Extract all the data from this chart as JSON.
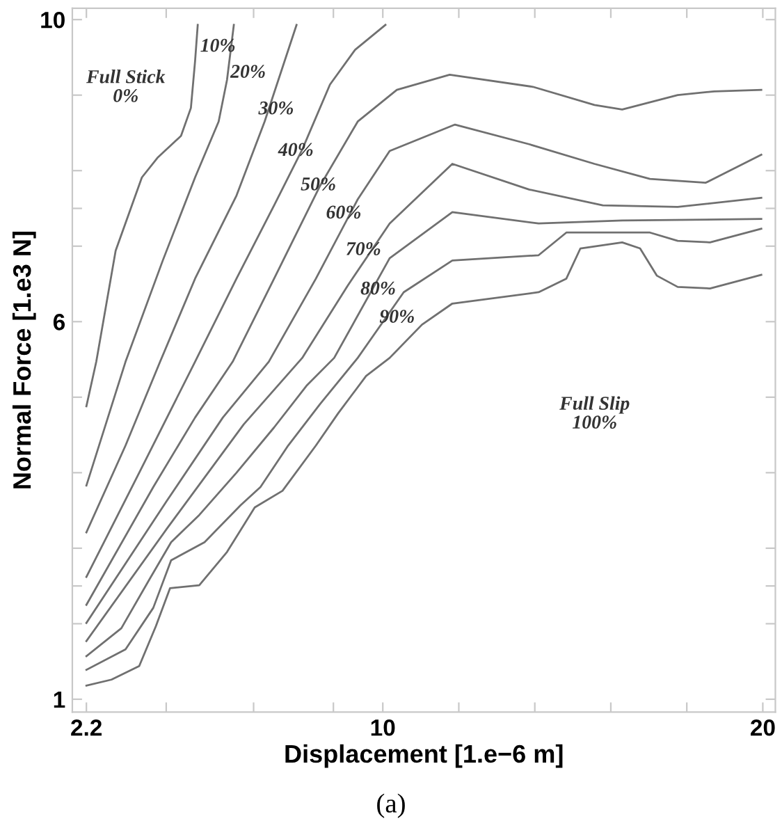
{
  "chart_data": {
    "type": "line",
    "xlabel": "Displacement [1.e−6 m]",
    "ylabel": "Normal Force [1.e3 N]",
    "xlim": [
      1.83,
      20.33
    ],
    "ylim": [
      0.83,
      10.15
    ],
    "xticks": [
      2.2,
      {
        "value": 4.3,
        "label": null
      },
      {
        "value": 6.6,
        "label": null
      },
      {
        "value": 8.7,
        "label": null
      },
      10,
      {
        "value": 12,
        "label": null
      },
      {
        "value": 14,
        "label": null
      },
      {
        "value": 16,
        "label": null
      },
      {
        "value": 18,
        "label": null
      },
      20
    ],
    "yticks": [
      1,
      {
        "value": 2,
        "label": null
      },
      {
        "value": 2.5,
        "label": null
      },
      {
        "value": 3,
        "label": null
      },
      {
        "value": 4,
        "label": null
      },
      {
        "value": 5,
        "label": null
      },
      6,
      {
        "value": 7,
        "label": null
      },
      {
        "value": 7.5,
        "label": null
      },
      {
        "value": 8,
        "label": null
      },
      {
        "value": 9,
        "label": null
      },
      10
    ],
    "grid": false,
    "marker": "none",
    "line_style": "solid",
    "series": [
      {
        "color": "#707070",
        "x": [
          2.2,
          2.46,
          2.97,
          3.66,
          4.07,
          4.69,
          4.95,
          5.06,
          5.13
        ],
        "values": [
          4.88,
          5.47,
          6.94,
          7.91,
          8.17,
          8.46,
          8.83,
          9.45,
          9.93
        ]
      },
      {
        "color": "#707070",
        "x": [
          2.2,
          3.23,
          4.21,
          5.06,
          5.68,
          5.9,
          6.08
        ],
        "values": [
          3.83,
          5.47,
          6.81,
          7.91,
          8.65,
          9.2,
          9.93
        ]
      },
      {
        "color": "#707070",
        "x": [
          2.2,
          3.23,
          4.14,
          5.06,
          6.15,
          6.89,
          7.73
        ],
        "values": [
          3.21,
          4.36,
          5.47,
          6.57,
          7.67,
          8.65,
          9.93
        ]
      },
      {
        "color": "#707070",
        "x": [
          2.2,
          3.59,
          5.06,
          6.15,
          7.14,
          7.88,
          8.61,
          9.27,
          10.07
        ],
        "values": [
          2.62,
          4.0,
          5.47,
          6.57,
          7.54,
          8.28,
          9.14,
          9.6,
          9.93
        ]
      },
      {
        "color": "#707070",
        "x": [
          2.2,
          3.96,
          5.06,
          6.05,
          7.14,
          8.35,
          9.34,
          10.37,
          11.76,
          13.95,
          15.57,
          16.3,
          17.76,
          18.72,
          19.96
        ],
        "values": [
          2.25,
          3.81,
          4.73,
          5.47,
          6.57,
          7.8,
          8.65,
          9.07,
          9.27,
          9.11,
          8.87,
          8.81,
          9.0,
          9.05,
          9.07
        ]
      },
      {
        "color": "#707070",
        "x": [
          2.2,
          4.32,
          5.79,
          7.0,
          8.24,
          9.34,
          10.18,
          11.9,
          13.85,
          15.57,
          17.03,
          18.5,
          19.96
        ],
        "values": [
          2.01,
          3.63,
          4.73,
          5.47,
          6.57,
          7.62,
          8.26,
          8.61,
          8.35,
          8.09,
          7.89,
          7.84,
          8.21
        ]
      },
      {
        "color": "#707070",
        "x": [
          2.2,
          4.32,
          6.34,
          7.88,
          9.08,
          10.18,
          11.83,
          13.85,
          15.79,
          17.76,
          19.96
        ],
        "values": [
          1.77,
          3.26,
          4.64,
          5.52,
          6.48,
          7.3,
          8.09,
          7.75,
          7.54,
          7.52,
          7.64
        ]
      },
      {
        "color": "#707070",
        "x": [
          2.2,
          3.12,
          3.85,
          4.43,
          5.17,
          6.15,
          7.14,
          7.99,
          8.72,
          10.18,
          11.83,
          14.1,
          16.3,
          19.96
        ],
        "values": [
          1.57,
          1.94,
          2.58,
          3.08,
          3.44,
          4.0,
          4.6,
          5.15,
          5.52,
          6.84,
          7.45,
          7.3,
          7.34,
          7.36
        ]
      },
      {
        "color": "#707070",
        "x": [
          2.2,
          3.23,
          3.96,
          4.43,
          5.31,
          6.26,
          6.78,
          7.51,
          8.35,
          9.34,
          10.55,
          11.83,
          14.1,
          14.83,
          17.03,
          17.76,
          18.61,
          19.96
        ],
        "values": [
          1.39,
          1.66,
          2.21,
          2.84,
          3.08,
          3.57,
          3.81,
          4.36,
          4.91,
          5.52,
          6.39,
          6.81,
          6.88,
          7.18,
          7.18,
          7.07,
          7.05,
          7.23
        ]
      },
      {
        "color": "#707070",
        "x": [
          2.2,
          2.86,
          3.59,
          4.03,
          4.4,
          5.17,
          5.9,
          6.63,
          7.36,
          8.24,
          8.83,
          9.56,
          10.18,
          11.03,
          11.83,
          14.1,
          14.83,
          15.2,
          16.3,
          16.77,
          17.21,
          17.76,
          18.61,
          19.96
        ],
        "values": [
          1.18,
          1.26,
          1.44,
          1.97,
          2.47,
          2.51,
          2.95,
          3.54,
          3.76,
          4.36,
          4.79,
          5.28,
          5.52,
          5.96,
          6.24,
          6.39,
          6.57,
          6.97,
          7.05,
          6.97,
          6.61,
          6.46,
          6.44,
          6.62
        ]
      }
    ],
    "annotations": [
      "10%",
      "20%",
      "30%",
      "40%",
      "50%",
      "60%",
      "70%",
      "80%",
      "90%",
      "Full Stick\n0%",
      "Full Slip\n100%",
      "(a)"
    ]
  }
}
